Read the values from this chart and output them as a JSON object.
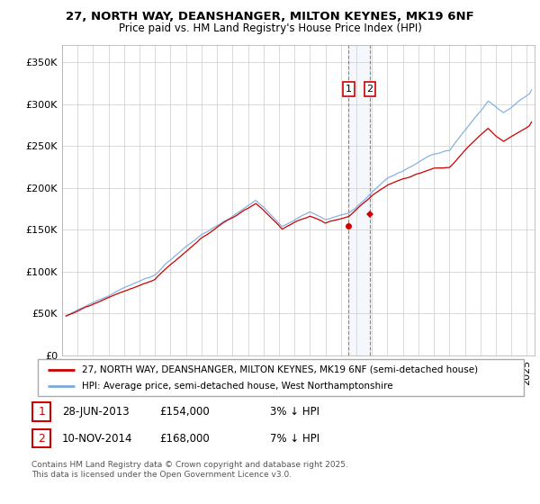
{
  "title1": "27, NORTH WAY, DEANSHANGER, MILTON KEYNES, MK19 6NF",
  "title2": "Price paid vs. HM Land Registry's House Price Index (HPI)",
  "ylabel_ticks": [
    "£0",
    "£50K",
    "£100K",
    "£150K",
    "£200K",
    "£250K",
    "£300K",
    "£350K"
  ],
  "ytick_values": [
    0,
    50000,
    100000,
    150000,
    200000,
    250000,
    300000,
    350000
  ],
  "ylim": [
    0,
    370000
  ],
  "xlim_start": 1995.3,
  "xlim_end": 2025.5,
  "red_line_color": "#cc0000",
  "blue_line_color": "#7aaadd",
  "sale1_x": 2013.49,
  "sale1_y": 154000,
  "sale2_x": 2014.86,
  "sale2_y": 168000,
  "legend_label_red": "27, NORTH WAY, DEANSHANGER, MILTON KEYNES, MK19 6NF (semi-detached house)",
  "legend_label_blue": "HPI: Average price, semi-detached house, West Northamptonshire",
  "table_row1_num": "1",
  "table_row1_date": "28-JUN-2013",
  "table_row1_price": "£154,000",
  "table_row1_hpi": "3% ↓ HPI",
  "table_row2_num": "2",
  "table_row2_date": "10-NOV-2014",
  "table_row2_price": "£168,000",
  "table_row2_hpi": "7% ↓ HPI",
  "footer": "Contains HM Land Registry data © Crown copyright and database right 2025.\nThis data is licensed under the Open Government Licence v3.0.",
  "background_color": "#ffffff",
  "grid_color": "#cccccc"
}
